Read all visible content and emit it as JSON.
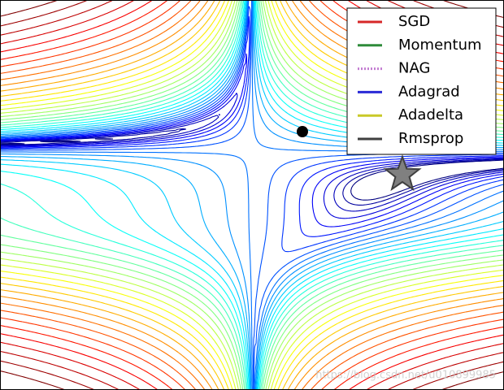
{
  "chart_data": {
    "type": "contour",
    "series": [
      {
        "name": "SGD",
        "color": "#d62728"
      },
      {
        "name": "Momentum",
        "color": "#2e8b3a"
      },
      {
        "name": "NAG",
        "color": "#c27bd1"
      },
      {
        "name": "Adagrad",
        "color": "#2a2ad6"
      },
      {
        "name": "Adadelta",
        "color": "#c9c928"
      },
      {
        "name": "Rmsprop",
        "color": "#3f3f3f"
      }
    ],
    "legend": "upper right",
    "watermark": "https://blog.csdn.net/u010899985"
  }
}
